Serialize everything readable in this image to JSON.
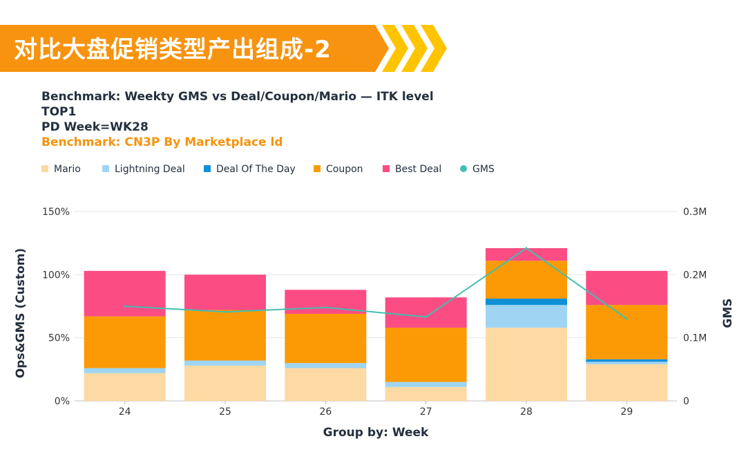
{
  "banner": {
    "title": "对比大盘促销类型产出组成-2"
  },
  "header": {
    "line1": "Benchmark: Weekty GMS vs Deal/Coupon/Mario — ITK level",
    "line2": "TOP1",
    "line3": "PD Week=WK28",
    "line4": "Benchmark: CN3P By Marketplace ld"
  },
  "colors": {
    "banner": "#f7930e",
    "banner_chevron_light": "#ffc400",
    "mario": "#fdd9a3",
    "lightning_deal": "#9fd5f2",
    "deal_of_the_day": "#0f90d8",
    "coupon": "#fb9a05",
    "best_deal": "#fb4d84",
    "gms": "#41bfb0",
    "grid": "#e6e6e6",
    "axis_text": "#333333",
    "header_orange": "#f7930e"
  },
  "chart_data": {
    "type": "bar",
    "stacked": true,
    "xlabel": "Group by: Week",
    "ylabel": "Ops&GMS (Custom)",
    "y2label": "GMS",
    "ylim": [
      0,
      150
    ],
    "y2lim": [
      0,
      300000
    ],
    "categories": [
      "24",
      "25",
      "26",
      "27",
      "28",
      "29"
    ],
    "yticks": [
      {
        "value": 0,
        "label": "0%"
      },
      {
        "value": 50,
        "label": "50%"
      },
      {
        "value": 100,
        "label": "100%"
      },
      {
        "value": 150,
        "label": "150%"
      }
    ],
    "y2ticks": [
      {
        "value": 0,
        "label": "0"
      },
      {
        "value": 100000,
        "label": "0.1M"
      },
      {
        "value": 200000,
        "label": "0.2M"
      },
      {
        "value": 300000,
        "label": "0.3M"
      }
    ],
    "series": [
      {
        "name": "Mario",
        "key": "mario",
        "values": [
          22,
          28,
          26,
          11,
          58,
          29
        ]
      },
      {
        "name": "Lightning Deal",
        "key": "lightning_deal",
        "values": [
          4,
          4,
          4,
          4,
          18,
          2
        ]
      },
      {
        "name": "Deal Of The Day",
        "key": "deal_of_the_day",
        "values": [
          0,
          0,
          0,
          0,
          5,
          2
        ]
      },
      {
        "name": "Coupon",
        "key": "coupon",
        "values": [
          41,
          40,
          39,
          43,
          30,
          43
        ]
      },
      {
        "name": "Best Deal",
        "key": "best_deal",
        "values": [
          36,
          28,
          19,
          24,
          10,
          27
        ]
      }
    ],
    "line_series": {
      "name": "GMS",
      "key": "gms",
      "axis": "right",
      "values": [
        150000,
        141000,
        148000,
        133000,
        242000,
        130000
      ]
    },
    "legend_position": "top-left"
  }
}
